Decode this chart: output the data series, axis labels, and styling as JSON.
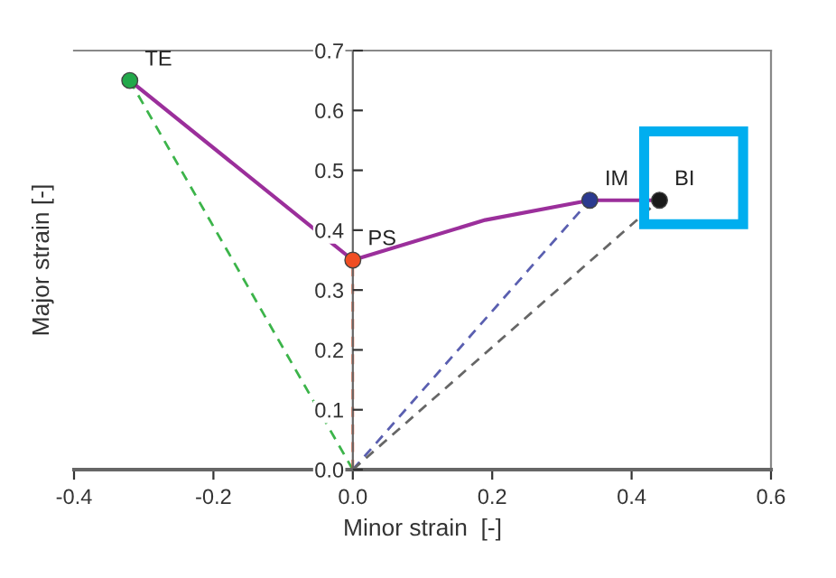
{
  "chart_data": {
    "type": "line",
    "xlabel": "Minor strain  [-]",
    "ylabel": "Major strain [-]",
    "xlim": [
      -0.4,
      0.6
    ],
    "ylim": [
      0,
      0.7
    ],
    "xticks": [
      {
        "value": -0.4,
        "label": "-0.4"
      },
      {
        "value": -0.2,
        "label": "-0.2"
      },
      {
        "value": 0,
        "label": "0.0"
      },
      {
        "value": 0.2,
        "label": "0.2"
      },
      {
        "value": 0.4,
        "label": "0.4"
      },
      {
        "value": 0.6,
        "label": "0.6"
      }
    ],
    "yticks": [
      {
        "value": 0,
        "label": "0.0"
      },
      0.1,
      0.2,
      0.3,
      0.4,
      0.5,
      0.6,
      0.7
    ],
    "grid": false,
    "series": [
      {
        "color": "#9b2f9b",
        "line_style": "solid",
        "marker": "none",
        "x": [
          -0.32,
          0,
          0.19,
          0.34,
          0.44
        ],
        "values": [
          0.65,
          0.35,
          0.417,
          0.45,
          0.45
        ]
      },
      {
        "color": "#3cb44a",
        "line_style": "dashed",
        "marker": "none",
        "x": [
          0,
          -0.32
        ],
        "values": [
          0,
          0.65
        ]
      },
      {
        "color": "#f04e23",
        "line_style": "dashed",
        "marker": "none",
        "x": [
          0,
          0
        ],
        "values": [
          0,
          0.35
        ]
      },
      {
        "color": "#5a5fb0",
        "line_style": "dashed",
        "marker": "none",
        "x": [
          0,
          0.34
        ],
        "values": [
          0,
          0.45
        ]
      },
      {
        "color": "#666666",
        "line_style": "dashed",
        "marker": "none",
        "x": [
          0,
          0.44
        ],
        "values": [
          0,
          0.45
        ]
      },
      {
        "type": "scatter",
        "marker": "circle",
        "colors": [
          "#22a84a",
          "#f04e23",
          "#2b3a8f",
          "#1a1a1a"
        ],
        "x": [
          -0.32,
          0,
          0.34,
          0.44
        ],
        "values": [
          0.65,
          0.35,
          0.45,
          0.45
        ]
      }
    ],
    "annotations": [
      {
        "text": "TE",
        "x": -0.32,
        "y": 0.65
      },
      {
        "text": "PS",
        "x": 0,
        "y": 0.35
      },
      {
        "text": "IM",
        "x": 0.34,
        "y": 0.45
      },
      {
        "text": "BI",
        "x": 0.44,
        "y": 0.45
      }
    ]
  }
}
